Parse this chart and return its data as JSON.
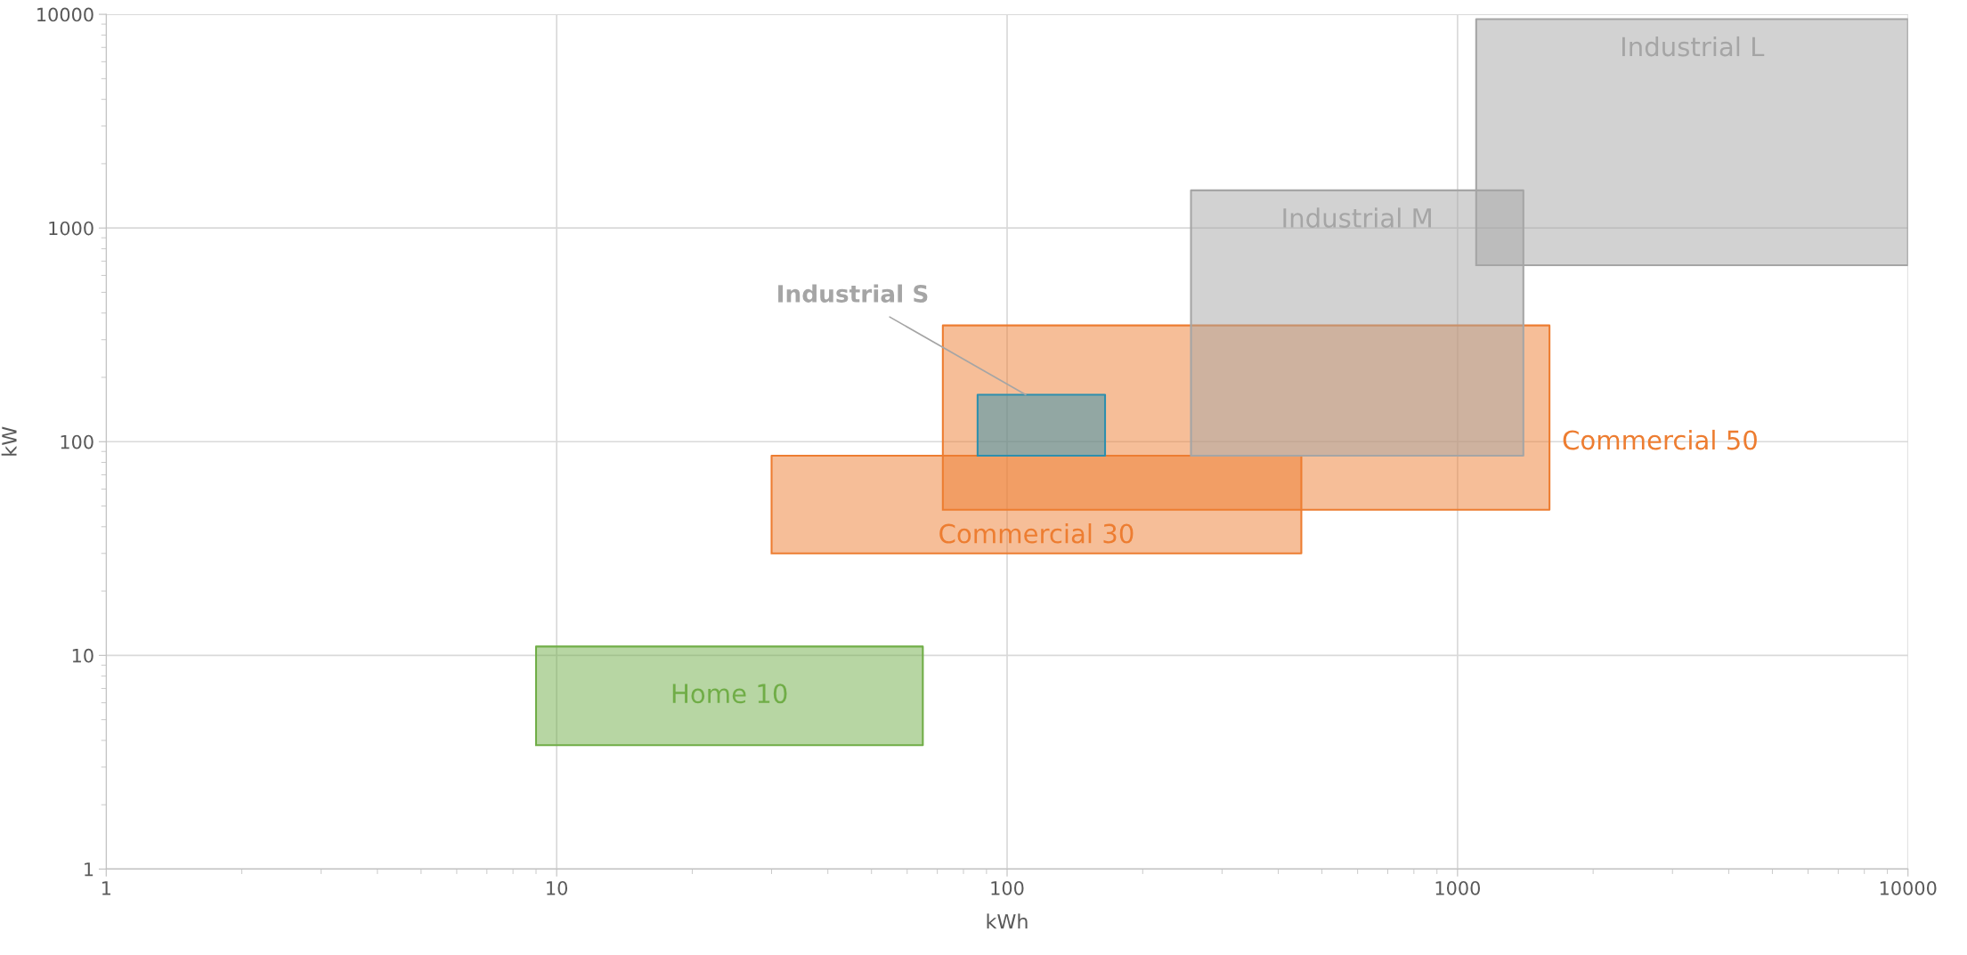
{
  "chart_data": {
    "type": "area",
    "xlabel": "kWh",
    "ylabel": "kW",
    "log": "xy",
    "grid": true,
    "legend": false,
    "xlim": [
      1,
      10000
    ],
    "xticks": [
      1,
      10,
      100,
      1000,
      10000
    ],
    "ylim": [
      1,
      10000
    ],
    "yticks": [
      1,
      10,
      100,
      1000,
      10000
    ],
    "series": [
      {
        "name": "Home 10",
        "color": "#70ad47",
        "x": [
          9,
          9,
          65,
          65,
          9
        ],
        "values": [
          3.8,
          11,
          11,
          3.8,
          3.8
        ]
      },
      {
        "name": "Commercial 50",
        "color": "#ed7d31",
        "x": [
          72,
          72,
          1600,
          1600,
          72
        ],
        "values": [
          48,
          350,
          350,
          48,
          48
        ]
      },
      {
        "name": "Commercial 30",
        "color": "#ed7d31",
        "x": [
          30,
          30,
          450,
          450,
          30
        ],
        "values": [
          30,
          86,
          86,
          30,
          30
        ]
      },
      {
        "name": "Industrial M",
        "color": "#a5a5a5",
        "x": [
          256,
          256,
          1400,
          1400,
          256
        ],
        "values": [
          86,
          1500,
          1500,
          86,
          86
        ]
      },
      {
        "name": "Industrial L",
        "color": "#a5a5a5",
        "x": [
          1100,
          1100,
          10000,
          10000,
          1100
        ],
        "values": [
          670,
          9500,
          9500,
          670,
          670
        ]
      },
      {
        "color": "#2e8fad",
        "x": [
          86,
          86,
          165,
          165,
          86
        ],
        "values": [
          86,
          166,
          166,
          86,
          86
        ]
      }
    ],
    "annotations": [
      {
        "text": "Industrial S",
        "x": 110,
        "y": 166
      }
    ]
  }
}
